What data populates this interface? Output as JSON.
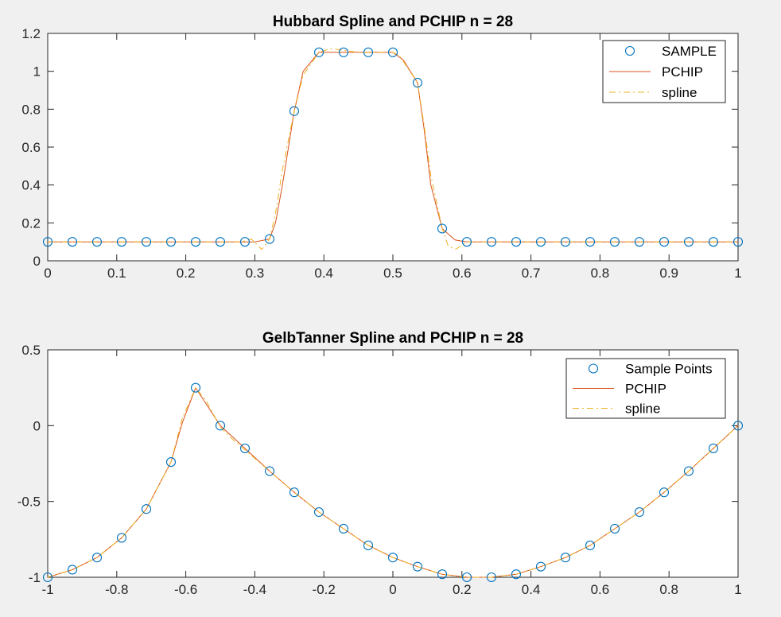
{
  "chart_data": [
    {
      "type": "line",
      "title": "Hubbard Spline and PCHIP n = 28",
      "xlabel": "",
      "ylabel": "",
      "xlim": [
        0,
        1
      ],
      "ylim": [
        0,
        1.2
      ],
      "grid": false,
      "legend_position": "top-right",
      "x_ticks": [
        0,
        0.1,
        0.2,
        0.3,
        0.4,
        0.5,
        0.6,
        0.7,
        0.8,
        0.9,
        1
      ],
      "x_tick_labels": [
        "0",
        "0.1",
        "0.2",
        "0.3",
        "0.4",
        "0.5",
        "0.6",
        "0.7",
        "0.8",
        "0.9",
        "1"
      ],
      "y_ticks": [
        0,
        0.2,
        0.4,
        0.6,
        0.8,
        1,
        1.2
      ],
      "y_tick_labels": [
        "0",
        "0.2",
        "0.4",
        "0.6",
        "0.8",
        "1",
        "1.2"
      ],
      "series": [
        {
          "name": "SAMPLE",
          "style": "markers",
          "color": "#0072bd",
          "x": [
            0,
            0.0357,
            0.0714,
            0.1071,
            0.1429,
            0.1786,
            0.2143,
            0.25,
            0.2857,
            0.3214,
            0.3571,
            0.3929,
            0.4286,
            0.4643,
            0.5,
            0.5357,
            0.5714,
            0.6071,
            0.6429,
            0.6786,
            0.7143,
            0.75,
            0.7857,
            0.8214,
            0.8571,
            0.8929,
            0.9286,
            0.9643,
            1
          ],
          "y": [
            0.1,
            0.1,
            0.1,
            0.1,
            0.1,
            0.1,
            0.1,
            0.1,
            0.1,
            0.115,
            0.79,
            1.1,
            1.1,
            1.1,
            1.1,
            0.94,
            0.17,
            0.1,
            0.1,
            0.1,
            0.1,
            0.1,
            0.1,
            0.1,
            0.1,
            0.1,
            0.1,
            0.1,
            0.1
          ]
        },
        {
          "name": "PCHIP",
          "style": "solid",
          "color": "#d95319",
          "x": [
            0,
            0.3,
            0.3214,
            0.33,
            0.34,
            0.3571,
            0.37,
            0.3929,
            0.45,
            0.5,
            0.515,
            0.5357,
            0.545,
            0.555,
            0.5714,
            0.59,
            0.6071,
            1
          ],
          "y": [
            0.1,
            0.1,
            0.115,
            0.2,
            0.4,
            0.79,
            1.0,
            1.1,
            1.1,
            1.1,
            1.06,
            0.94,
            0.7,
            0.4,
            0.17,
            0.11,
            0.1,
            0.1
          ]
        },
        {
          "name": "spline",
          "style": "dashdot",
          "color": "#edb120",
          "x": [
            0,
            0.28,
            0.295,
            0.31,
            0.3214,
            0.33,
            0.34,
            0.3571,
            0.37,
            0.3929,
            0.41,
            0.45,
            0.5,
            0.51,
            0.5357,
            0.545,
            0.555,
            0.5714,
            0.58,
            0.59,
            0.6,
            0.6071,
            0.62,
            1
          ],
          "y": [
            0.1,
            0.1,
            0.115,
            0.06,
            0.115,
            0.25,
            0.48,
            0.79,
            0.98,
            1.1,
            1.12,
            1.1,
            1.1,
            1.08,
            0.94,
            0.72,
            0.45,
            0.17,
            0.08,
            0.06,
            0.08,
            0.1,
            0.1,
            0.1
          ]
        }
      ]
    },
    {
      "type": "line",
      "title": "GelbTanner Spline and PCHIP n = 28",
      "xlabel": "",
      "ylabel": "",
      "xlim": [
        -1,
        1
      ],
      "ylim": [
        -1,
        0.5
      ],
      "grid": false,
      "legend_position": "top-right",
      "x_ticks": [
        -1,
        -0.8,
        -0.6,
        -0.4,
        -0.2,
        0,
        0.2,
        0.4,
        0.6,
        0.8,
        1
      ],
      "x_tick_labels": [
        "-1",
        "-0.8",
        "-0.6",
        "-0.4",
        "-0.2",
        "0",
        "0.2",
        "0.4",
        "0.6",
        "0.8",
        "1"
      ],
      "y_ticks": [
        -1,
        -0.5,
        0,
        0.5
      ],
      "y_tick_labels": [
        "-1",
        "-0.5",
        "0",
        "0.5"
      ],
      "series": [
        {
          "name": "Sample Points",
          "style": "markers",
          "color": "#0072bd",
          "x": [
            -1,
            -0.9286,
            -0.8571,
            -0.7857,
            -0.7143,
            -0.6429,
            -0.5714,
            -0.5,
            -0.4286,
            -0.3571,
            -0.2857,
            -0.2143,
            -0.1429,
            -0.0714,
            0,
            0.0714,
            0.1429,
            0.2143,
            0.2857,
            0.3571,
            0.4286,
            0.5,
            0.5714,
            0.6429,
            0.7143,
            0.7857,
            0.8571,
            0.9286,
            1
          ],
          "y": [
            -1,
            -0.95,
            -0.87,
            -0.74,
            -0.55,
            -0.24,
            0.25,
            0,
            -0.15,
            -0.3,
            -0.44,
            -0.57,
            -0.68,
            -0.79,
            -0.87,
            -0.93,
            -0.98,
            -1,
            -1,
            -0.98,
            -0.93,
            -0.87,
            -0.79,
            -0.68,
            -0.57,
            -0.44,
            -0.3,
            -0.15,
            0
          ]
        },
        {
          "name": "PCHIP",
          "style": "solid",
          "color": "#d95319",
          "x": [
            -1,
            -0.9286,
            -0.8571,
            -0.7857,
            -0.7143,
            -0.6429,
            -0.61,
            -0.5714,
            -0.54,
            -0.5,
            -0.4286,
            -0.3571,
            -0.2857,
            -0.2143,
            -0.1429,
            -0.0714,
            0,
            0.0714,
            0.1429,
            0.2143,
            0.2857,
            0.3571,
            0.4286,
            0.5,
            0.5714,
            0.6429,
            0.7143,
            0.7857,
            0.8571,
            0.9286,
            1
          ],
          "y": [
            -1,
            -0.95,
            -0.87,
            -0.74,
            -0.55,
            -0.24,
            0.02,
            0.25,
            0.14,
            0,
            -0.15,
            -0.3,
            -0.44,
            -0.57,
            -0.68,
            -0.79,
            -0.87,
            -0.93,
            -0.98,
            -1,
            -1,
            -0.98,
            -0.93,
            -0.87,
            -0.79,
            -0.68,
            -0.57,
            -0.44,
            -0.3,
            -0.15,
            0
          ]
        },
        {
          "name": "spline",
          "style": "dashdot",
          "color": "#edb120",
          "x": [
            -1,
            -0.9286,
            -0.8571,
            -0.7857,
            -0.7143,
            -0.6429,
            -0.61,
            -0.5714,
            -0.54,
            -0.5,
            -0.46,
            -0.4286,
            -0.3571,
            -0.2857,
            -0.2143,
            -0.1429,
            -0.0714,
            0,
            0.0714,
            0.1429,
            0.2143,
            0.2857,
            0.3571,
            0.4286,
            0.5,
            0.5714,
            0.6429,
            0.7143,
            0.7857,
            0.8571,
            0.9286,
            1
          ],
          "y": [
            -1,
            -0.95,
            -0.87,
            -0.74,
            -0.55,
            -0.24,
            0.05,
            0.25,
            0.16,
            -0.01,
            -0.1,
            -0.16,
            -0.3,
            -0.44,
            -0.57,
            -0.68,
            -0.79,
            -0.87,
            -0.93,
            -0.98,
            -1,
            -1,
            -0.98,
            -0.93,
            -0.87,
            -0.79,
            -0.68,
            -0.57,
            -0.44,
            -0.3,
            -0.15,
            0
          ]
        }
      ]
    }
  ]
}
